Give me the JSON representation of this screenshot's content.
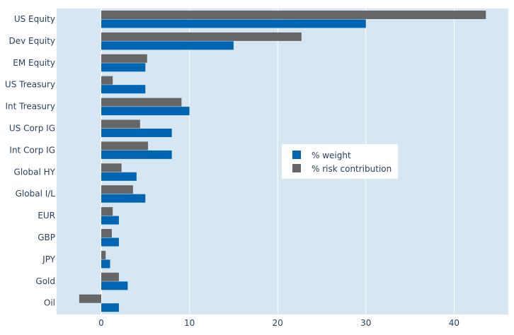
{
  "chart_data": {
    "type": "bar",
    "orientation": "horizontal",
    "categories": [
      "US Equity",
      "Dev Equity",
      "EM Equity",
      "US Treasury",
      "Int Treasury",
      "US Corp IG",
      "Int Corp IG",
      "Global HY",
      "Global I/L",
      "EUR",
      "GBP",
      "JPY",
      "Gold",
      "Oil"
    ],
    "series": [
      {
        "name": "% weight",
        "color": "#0066b3",
        "values": [
          30,
          15,
          5,
          5,
          10,
          8,
          8,
          4,
          5,
          2,
          2,
          1,
          3,
          2
        ]
      },
      {
        "name": "% risk contribution",
        "color": "#666666",
        "values": [
          43.6,
          22.7,
          5.2,
          1.3,
          9.1,
          4.4,
          5.3,
          2.3,
          3.6,
          1.3,
          1.2,
          0.5,
          2.0,
          -2.5
        ]
      }
    ],
    "xlim": [
      -5,
      46
    ],
    "xticks": [
      "0",
      "10",
      "20",
      "30",
      "40"
    ],
    "grid": true,
    "legend_position": "right-middle",
    "plot_bgcolor": "#d6e6f2"
  }
}
